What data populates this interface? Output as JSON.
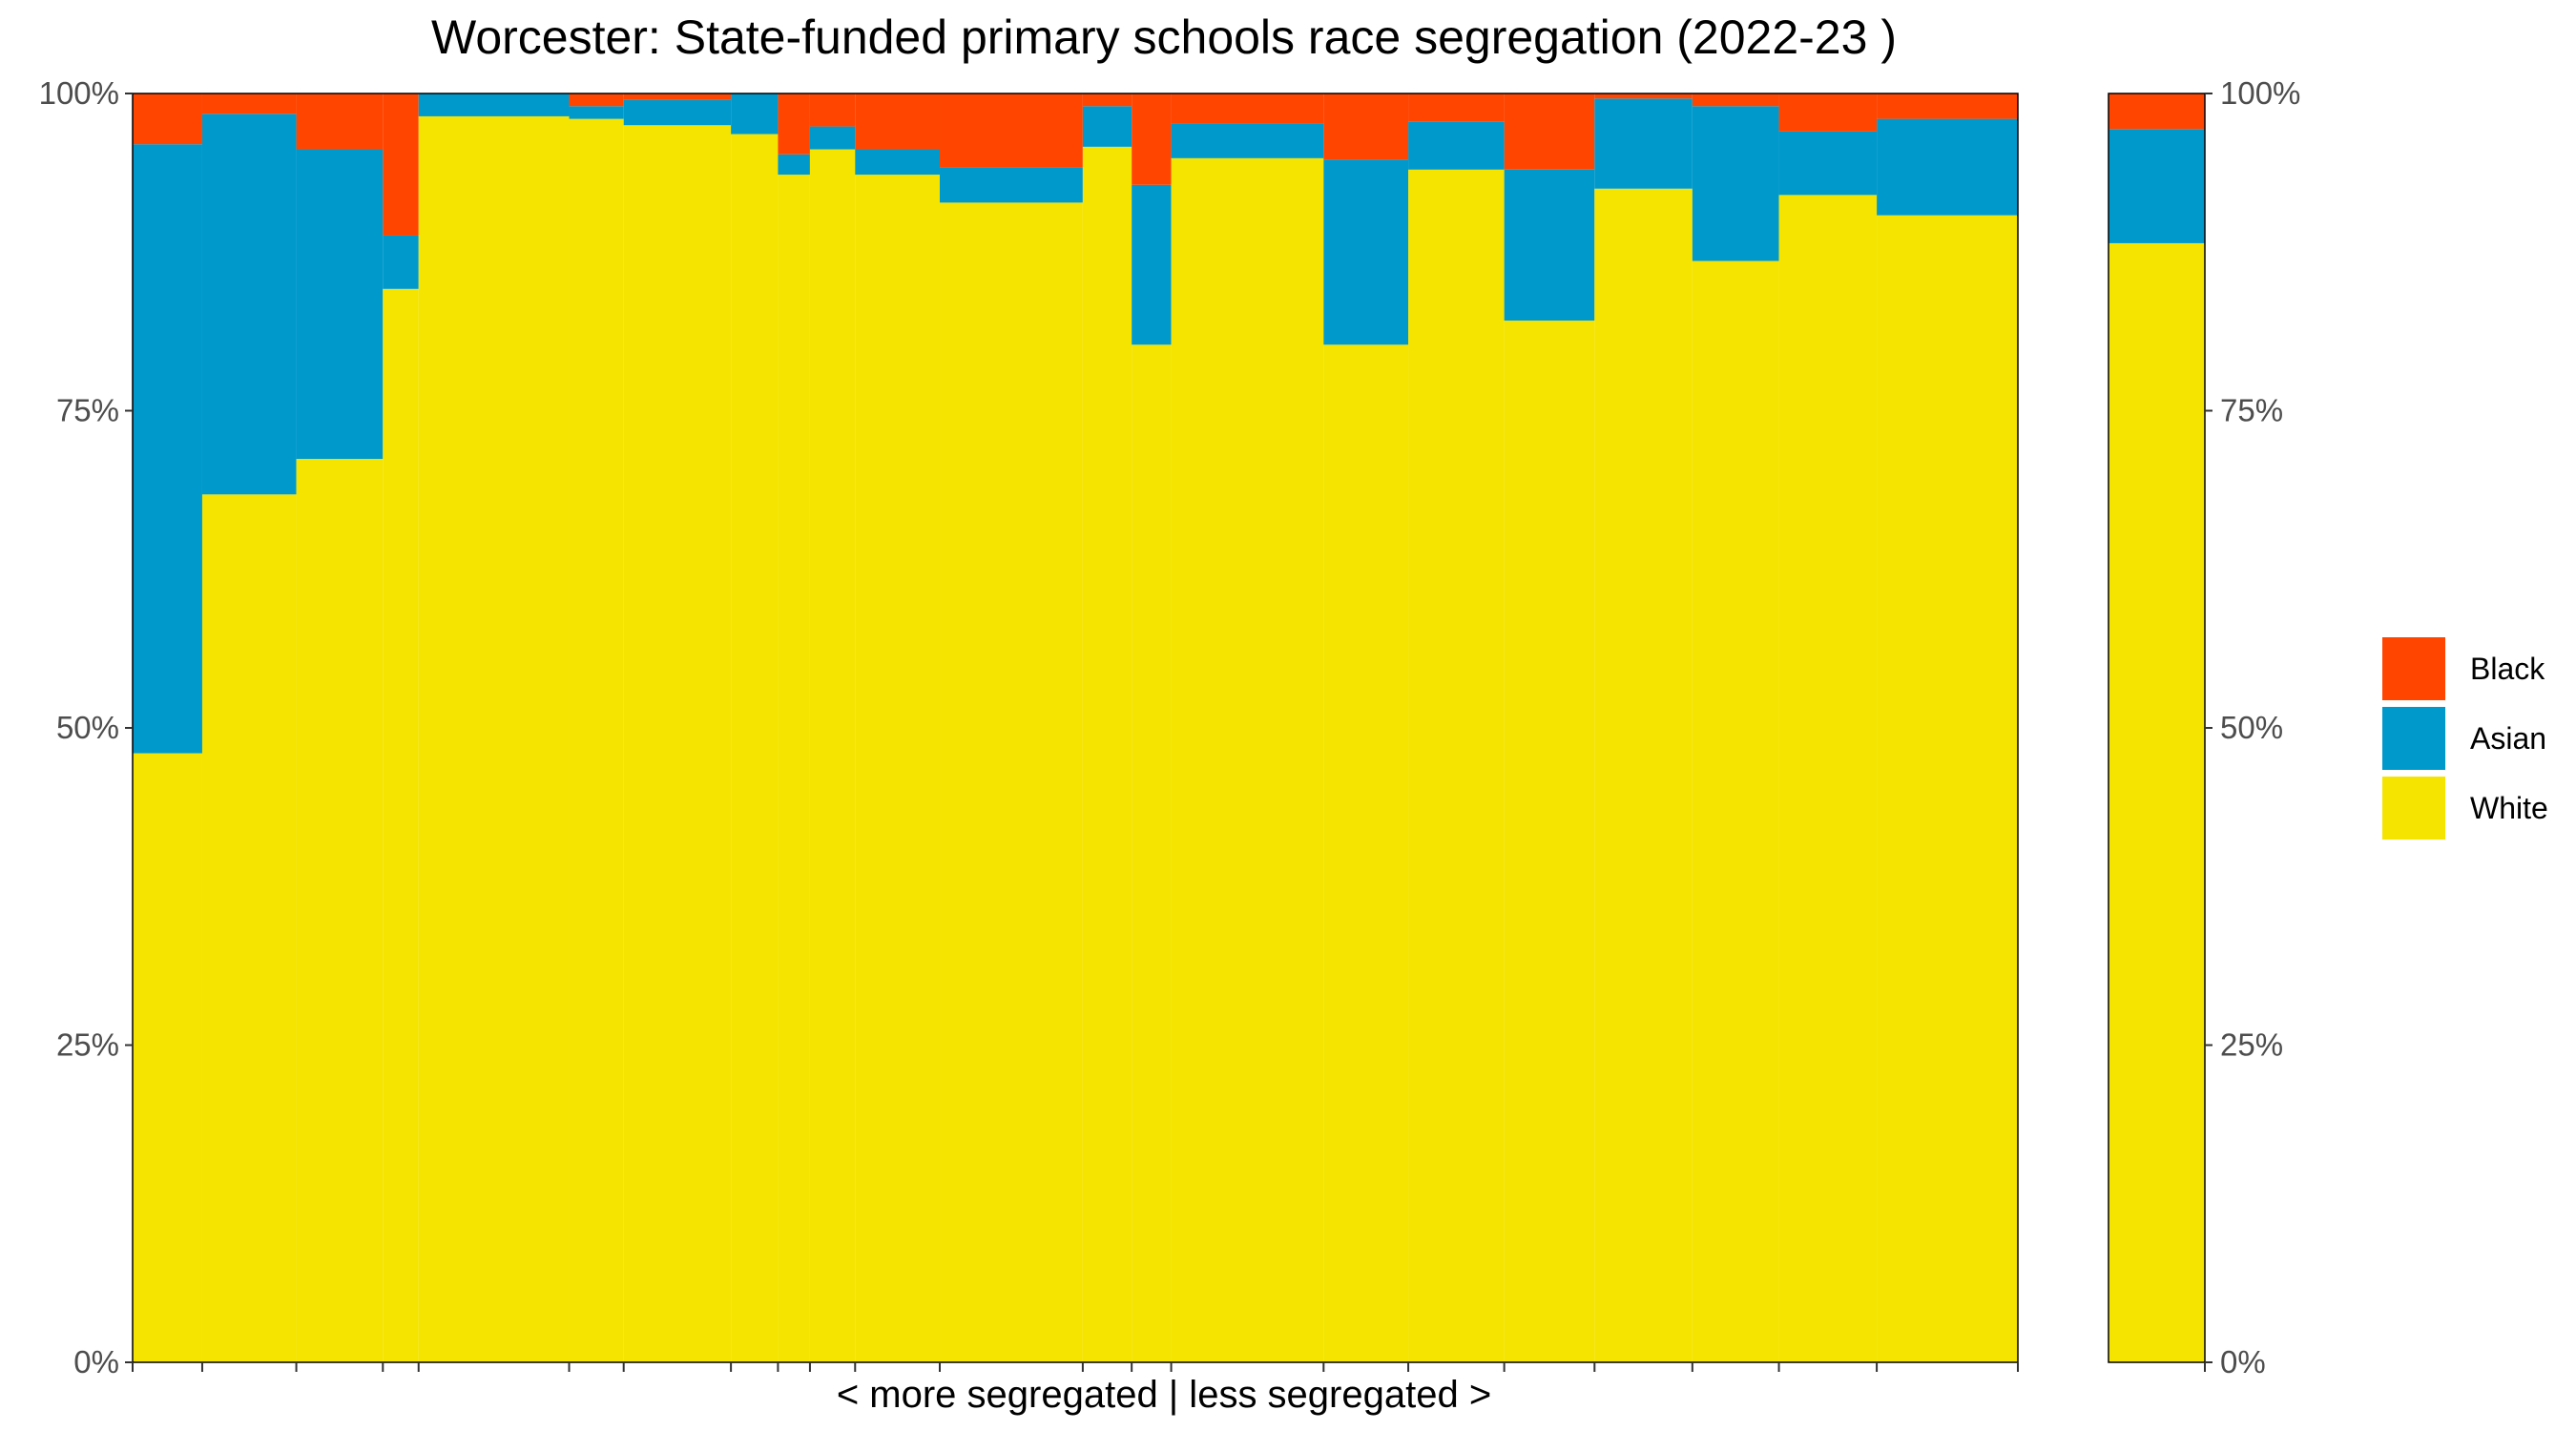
{
  "chart_data": {
    "type": "bar",
    "subtype": "stacked-variable-width",
    "title": "Worcester: State-funded primary schools race segregation (2022-23 )",
    "xlabel": "< more segregated | less segregated >",
    "ylabel": "",
    "ylim": [
      0,
      100
    ],
    "y_ticks": [
      "0%",
      "25%",
      "50%",
      "75%",
      "100%"
    ],
    "y_tick_values": [
      0,
      25,
      50,
      75,
      100
    ],
    "grid": false,
    "legend_position": "right",
    "colors": {
      "White": "#f5e400",
      "Asian": "#0099cc",
      "Black": "#ff4500",
      "Other": "#ffffff"
    },
    "legend": [
      {
        "name": "Black",
        "color": "#ff4500"
      },
      {
        "name": "Asian",
        "color": "#0099cc"
      },
      {
        "name": "White",
        "color": "#f5e400"
      }
    ],
    "schools": [
      {
        "weight": 3.7,
        "white": 48.0,
        "asian": 48.0,
        "black": 4.0
      },
      {
        "weight": 5.0,
        "white": 68.4,
        "asian": 30.0,
        "black": 1.6
      },
      {
        "weight": 4.6,
        "white": 71.2,
        "asian": 24.4,
        "black": 4.4
      },
      {
        "weight": 1.9,
        "white": 84.6,
        "asian": 4.2,
        "black": 11.2
      },
      {
        "weight": 8.0,
        "white": 98.2,
        "asian": 1.8,
        "black": 0.0
      },
      {
        "weight": 2.9,
        "white": 98.0,
        "asian": 1.0,
        "black": 1.0
      },
      {
        "weight": 5.7,
        "white": 97.5,
        "asian": 2.0,
        "black": 0.5
      },
      {
        "weight": 2.5,
        "white": 96.8,
        "asian": 3.2,
        "black": 0.0
      },
      {
        "weight": 1.7,
        "white": 93.6,
        "asian": 1.6,
        "black": 4.8
      },
      {
        "weight": 2.4,
        "white": 95.6,
        "asian": 1.8,
        "black": 2.6
      },
      {
        "weight": 4.5,
        "white": 93.6,
        "asian": 2.0,
        "black": 4.4
      },
      {
        "weight": 7.6,
        "white": 91.4,
        "asian": 2.8,
        "black": 5.8
      },
      {
        "weight": 2.6,
        "white": 95.8,
        "asian": 3.2,
        "black": 1.0
      },
      {
        "weight": 2.1,
        "white": 80.2,
        "asian": 12.6,
        "black": 7.2
      },
      {
        "weight": 8.1,
        "white": 94.9,
        "asian": 2.7,
        "black": 2.4
      },
      {
        "weight": 4.5,
        "white": 80.2,
        "asian": 14.6,
        "black": 5.2
      },
      {
        "weight": 5.1,
        "white": 94.0,
        "asian": 3.8,
        "black": 2.2
      },
      {
        "weight": 4.8,
        "white": 82.1,
        "asian": 11.9,
        "black": 6.0
      },
      {
        "weight": 5.2,
        "white": 92.5,
        "asian": 7.1,
        "black": 0.4
      },
      {
        "weight": 4.6,
        "white": 86.8,
        "asian": 12.2,
        "black": 1.0
      },
      {
        "weight": 5.2,
        "white": 92.0,
        "asian": 5.0,
        "black": 3.0
      },
      {
        "weight": 7.5,
        "white": 90.4,
        "asian": 7.6,
        "black": 2.0
      }
    ],
    "overall": {
      "white": 88.2,
      "asian": 9.0,
      "black": 2.8
    }
  }
}
